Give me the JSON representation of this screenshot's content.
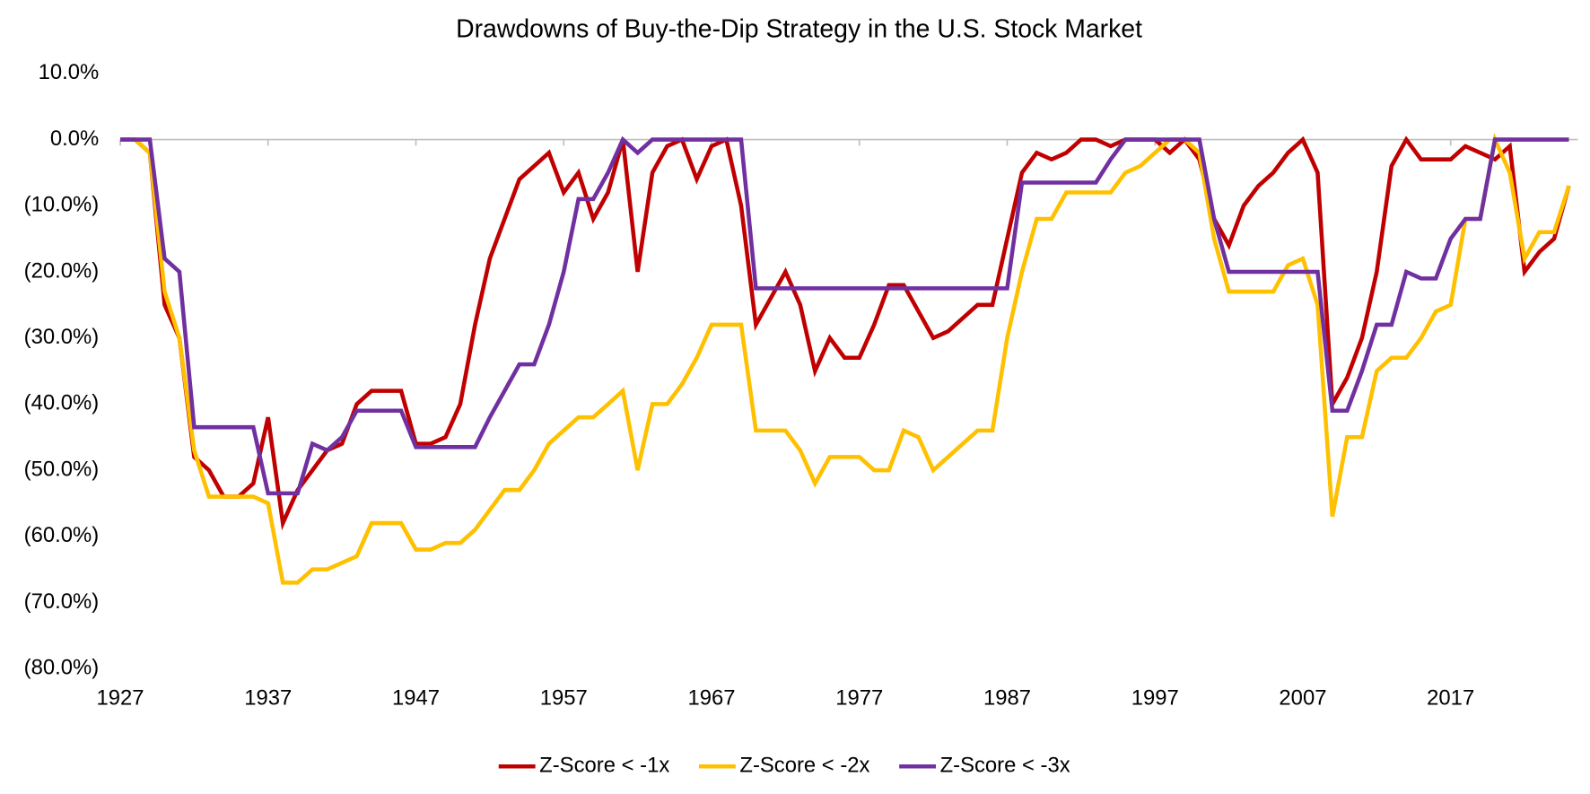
{
  "chart_data": {
    "type": "line",
    "title": "Drawdowns of Buy-the-Dip Strategy in the U.S. Stock Market",
    "x": [
      1927,
      1928,
      1929,
      1930,
      1931,
      1932,
      1933,
      1934,
      1935,
      1936,
      1937,
      1938,
      1939,
      1940,
      1941,
      1942,
      1943,
      1944,
      1945,
      1946,
      1947,
      1948,
      1949,
      1950,
      1951,
      1952,
      1953,
      1954,
      1955,
      1956,
      1957,
      1958,
      1959,
      1960,
      1961,
      1962,
      1963,
      1964,
      1965,
      1966,
      1967,
      1968,
      1969,
      1970,
      1971,
      1972,
      1973,
      1974,
      1975,
      1976,
      1977,
      1978,
      1979,
      1980,
      1981,
      1982,
      1983,
      1984,
      1985,
      1986,
      1987,
      1988,
      1989,
      1990,
      1991,
      1992,
      1993,
      1994,
      1995,
      1996,
      1997,
      1998,
      1999,
      2000,
      2001,
      2002,
      2003,
      2004,
      2005,
      2006,
      2007,
      2008,
      2009,
      2010,
      2011,
      2012,
      2013,
      2014,
      2015,
      2016,
      2017,
      2018,
      2019,
      2020,
      2021,
      2022,
      2023,
      2024,
      2025
    ],
    "series": [
      {
        "name": "Z-Score < -1x",
        "color": "#C00000",
        "values": [
          0,
          0,
          -2,
          -25,
          -30,
          -48,
          -50,
          -54,
          -54,
          -52,
          -42,
          -58,
          -53,
          -50,
          -47,
          -46,
          -40,
          -38,
          -38,
          -38,
          -46,
          -46,
          -45,
          -40,
          -28,
          -18,
          -12,
          -6,
          -4,
          -2,
          -8,
          -5,
          -12,
          -8,
          0,
          -20,
          -5,
          -1,
          0,
          -6,
          -1,
          0,
          -10,
          -28,
          -24,
          -20,
          -25,
          -35,
          -30,
          -33,
          -33,
          -28,
          -22,
          -22,
          -26,
          -30,
          -29,
          -27,
          -25,
          -25,
          -15,
          -5,
          -2,
          -3,
          -2,
          0,
          0,
          -1,
          0,
          0,
          0,
          -2,
          0,
          -3,
          -12,
          -16,
          -10,
          -7,
          -5,
          -2,
          0,
          -5,
          -40,
          -36,
          -30,
          -20,
          -4,
          0,
          -3,
          -3,
          -3,
          -1,
          -2,
          -3,
          -1,
          -20,
          -17,
          -15,
          -7
        ]
      },
      {
        "name": "Z-Score < -2x",
        "color": "#FFC000",
        "values": [
          0,
          0,
          -2,
          -23,
          -30,
          -47,
          -54,
          -54,
          -54,
          -54,
          -55,
          -67,
          -67,
          -65,
          -65,
          -64,
          -63,
          -58,
          -58,
          -58,
          -62,
          -62,
          -61,
          -61,
          -59,
          -56,
          -53,
          -53,
          -50,
          -46,
          -44,
          -42,
          -42,
          -40,
          -38,
          -50,
          -40,
          -40,
          -37,
          -33,
          -28,
          -28,
          -28,
          -44,
          -44,
          -44,
          -47,
          -52,
          -48,
          -48,
          -48,
          -50,
          -50,
          -44,
          -45,
          -50,
          -48,
          -46,
          -44,
          -44,
          -30,
          -20,
          -12,
          -12,
          -8,
          -8,
          -8,
          -8,
          -5,
          -4,
          -2,
          0,
          0,
          -2,
          -15,
          -23,
          -23,
          -23,
          -23,
          -19,
          -18,
          -25,
          -57,
          -45,
          -45,
          -35,
          -33,
          -33,
          -30,
          -26,
          -25,
          -12,
          -12,
          0,
          -5,
          -18,
          -14,
          -14,
          -7
        ]
      },
      {
        "name": "Z-Score < -3x",
        "color": "#7030A0",
        "values": [
          0,
          0,
          0,
          -18,
          -20,
          -43.5,
          -43.5,
          -43.5,
          -43.5,
          -43.5,
          -53.5,
          -53.5,
          -53.5,
          -46,
          -47,
          -45,
          -41,
          -41,
          -41,
          -41,
          -46.5,
          -46.5,
          -46.5,
          -46.5,
          -46.5,
          -42,
          -38,
          -34,
          -34,
          -28,
          -20,
          -9,
          -9,
          -5,
          0,
          -2,
          0,
          0,
          0,
          0,
          0,
          0,
          0,
          -22.5,
          -22.5,
          -22.5,
          -22.5,
          -22.5,
          -22.5,
          -22.5,
          -22.5,
          -22.5,
          -22.5,
          -22.5,
          -22.5,
          -22.5,
          -22.5,
          -22.5,
          -22.5,
          -22.5,
          -22.5,
          -6.5,
          -6.5,
          -6.5,
          -6.5,
          -6.5,
          -6.5,
          -3,
          0,
          0,
          0,
          0,
          0,
          0,
          -12,
          -20,
          -20,
          -20,
          -20,
          -20,
          -20,
          -20,
          -41,
          -41,
          -35,
          -28,
          -28,
          -20,
          -21,
          -21,
          -15,
          -12,
          -12,
          0,
          0,
          0,
          0,
          0,
          0
        ]
      }
    ],
    "xlim": [
      1927,
      2025.6
    ],
    "xticks": [
      1927,
      1937,
      1947,
      1957,
      1967,
      1977,
      1987,
      1997,
      2007,
      2017
    ],
    "ylim": [
      -80,
      10
    ],
    "yticks": [
      {
        "value": 10,
        "label": "10.0%"
      },
      {
        "value": 0,
        "label": "0.0%"
      },
      {
        "value": -10,
        "label": "(10.0%)"
      },
      {
        "value": -20,
        "label": "(20.0%)"
      },
      {
        "value": -30,
        "label": "(30.0%)"
      },
      {
        "value": -40,
        "label": "(40.0%)"
      },
      {
        "value": -50,
        "label": "(50.0%)"
      },
      {
        "value": -60,
        "label": "(60.0%)"
      },
      {
        "value": -70,
        "label": "(70.0%)"
      },
      {
        "value": -80,
        "label": "(80.0%)"
      }
    ],
    "grid": false,
    "legend": "bottom"
  }
}
